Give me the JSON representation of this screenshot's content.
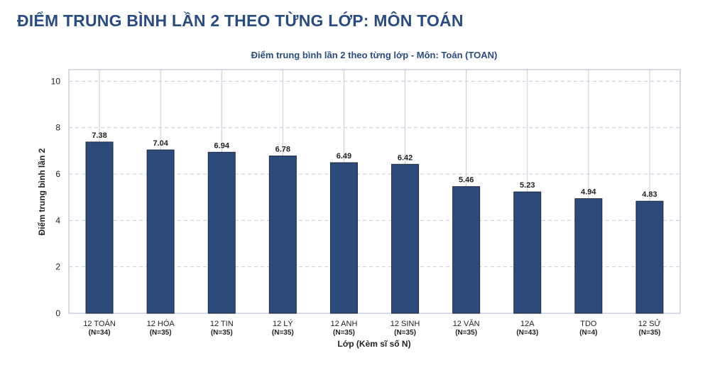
{
  "page": {
    "heading": "ĐIỂM TRUNG BÌNH LẦN 2 THEO TỪNG LỚP: MÔN TOÁN"
  },
  "colors": {
    "heading": "#2b4c7e",
    "bar": "#2d4b7a",
    "bar_edge": "#1b2a40",
    "grid": "#c9c9dc",
    "frame": "#c5c5d8",
    "text": "#222222"
  },
  "chart_data": {
    "type": "bar",
    "title": "Điểm trung bình lần 2 theo từng lớp - Môn: Toán (TOAN)",
    "xlabel": "Lớp (Kèm sĩ số N)",
    "ylabel": "Điểm trung bình lần 2",
    "ylim": [
      0,
      10.5
    ],
    "yticks": [
      0,
      2,
      4,
      6,
      8,
      10
    ],
    "grid": true,
    "categories": [
      {
        "name": "12 TOÁN",
        "n": "(N=34)"
      },
      {
        "name": "12 HÓA",
        "n": "(N=35)"
      },
      {
        "name": "12 TIN",
        "n": "(N=35)"
      },
      {
        "name": "12 LÝ",
        "n": "(N=35)"
      },
      {
        "name": "12 ANH",
        "n": "(N=35)"
      },
      {
        "name": "12 SINH",
        "n": "(N=35)"
      },
      {
        "name": "12 VĂN",
        "n": "(N=35)"
      },
      {
        "name": "12A",
        "n": "(N=43)"
      },
      {
        "name": "TDO",
        "n": "(N=4)"
      },
      {
        "name": "12 SỬ",
        "n": "(N=35)"
      }
    ],
    "values": [
      7.38,
      7.04,
      6.94,
      6.78,
      6.49,
      6.42,
      5.46,
      5.23,
      4.94,
      4.83
    ],
    "value_labels": [
      "7.38",
      "7.04",
      "6.94",
      "6.78",
      "6.49",
      "6.42",
      "5.46",
      "5.23",
      "4.94",
      "4.83"
    ]
  }
}
